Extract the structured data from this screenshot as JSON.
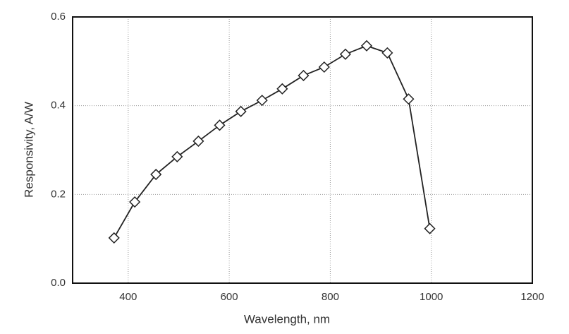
{
  "chart_data": {
    "type": "line",
    "x_label": "Wavelength, nm",
    "y_label": "Responsivity, A/W",
    "series": [
      {
        "name": "Responsivity",
        "color": "#222222",
        "x": [
          372,
          413,
          455,
          497,
          539,
          581,
          623,
          665,
          705,
          747,
          788,
          830,
          872,
          913,
          955,
          997
        ],
        "values": [
          0.102,
          0.183,
          0.245,
          0.285,
          0.32,
          0.356,
          0.387,
          0.412,
          0.438,
          0.468,
          0.487,
          0.516,
          0.535,
          0.519,
          0.415,
          0.123
        ]
      }
    ],
    "xlim": [
      290,
      1200
    ],
    "xticks": [
      400,
      600,
      800,
      1000,
      1200
    ],
    "ylim": [
      0,
      0.6
    ],
    "yticks": [
      {
        "value": 0,
        "label": "0.0"
      },
      0.2,
      0.4,
      0.6
    ],
    "grid": true
  }
}
